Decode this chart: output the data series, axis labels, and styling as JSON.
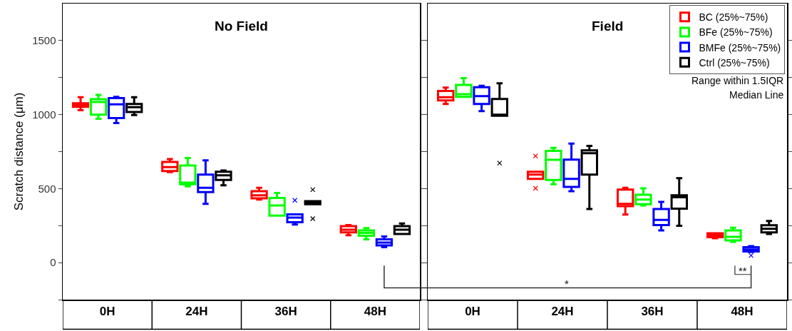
{
  "chart_data": [
    {
      "type": "box",
      "title": "No Field",
      "ylabel": "Scratch distance (μm)",
      "categories": [
        "0H",
        "24H",
        "36H",
        "48H"
      ],
      "ylim": [
        -250,
        1750
      ],
      "yticks": [
        {
          "value": -250,
          "label": null
        },
        0,
        {
          "value": 250,
          "label": null
        },
        500,
        {
          "value": 750,
          "label": null
        },
        1000,
        {
          "value": 1250,
          "label": null
        },
        1500
      ],
      "legend": false,
      "series": [
        {
          "color": "#ff0000",
          "boxes": [
            {
              "low": 1029,
              "q1": 1053,
              "median": 1065,
              "q3": 1077,
              "high": 1117
            },
            {
              "low": 611,
              "q1": 619,
              "median": 645,
              "q3": 680,
              "high": 699
            },
            {
              "low": 426,
              "q1": 434,
              "median": 455,
              "q3": 482,
              "high": 506
            },
            {
              "low": 185,
              "q1": 204,
              "median": 222,
              "q3": 246,
              "high": 254
            }
          ]
        },
        {
          "color": "#00ff00",
          "boxes": [
            {
              "low": 972,
              "q1": 1000,
              "median": 1085,
              "q3": 1104,
              "high": 1133
            },
            {
              "low": 515,
              "q1": 530,
              "median": 540,
              "q3": 656,
              "high": 707
            },
            {
              "low": 318,
              "q1": 318,
              "median": 386,
              "q3": 437,
              "high": 471
            },
            {
              "low": 157,
              "q1": 181,
              "median": 201,
              "q3": 217,
              "high": 233
            }
          ]
        },
        {
          "color": "#0000ff",
          "boxes": [
            {
              "low": 943,
              "q1": 976,
              "median": 1069,
              "q3": 1112,
              "high": 1120
            },
            {
              "low": 397,
              "q1": 477,
              "median": 506,
              "q3": 594,
              "high": 691
            },
            {
              "low": 257,
              "q1": 273,
              "median": 304,
              "q3": 326,
              "high": 326,
              "outliers": [
                421
              ]
            },
            {
              "low": 104,
              "q1": 116,
              "median": 136,
              "q3": 157,
              "high": 177
            }
          ]
        },
        {
          "color": "#000000",
          "boxes": [
            {
              "low": 997,
              "q1": 1018,
              "median": 1050,
              "q3": 1072,
              "high": 1117
            },
            {
              "low": 522,
              "q1": 559,
              "median": 590,
              "q3": 614,
              "high": 622
            },
            {
              "low": 394,
              "q1": 394,
              "median": 403,
              "q3": 415,
              "high": 415,
              "outliers": [
                493,
                297
              ]
            },
            {
              "low": 193,
              "q1": 193,
              "median": 222,
              "q3": 246,
              "high": 265
            }
          ]
        }
      ]
    },
    {
      "type": "box",
      "title": "Field",
      "categories": [
        "0H",
        "24H",
        "36H",
        "48H"
      ],
      "ylim": [
        -250,
        1750
      ],
      "yticks": [
        {
          "value": -250,
          "label": null
        },
        0,
        {
          "value": 250,
          "label": null
        },
        500,
        {
          "value": 750,
          "label": null
        },
        1000,
        {
          "value": 1250,
          "label": null
        },
        1500
      ],
      "legend": "top right",
      "tick_labels": "x",
      "annotations": [
        "Range within 1.5IQR",
        "Median Line",
        "*",
        "**"
      ],
      "series": [
        {
          "name": "BC (25%~75%)",
          "color": "#ff0000",
          "boxes": [
            {
              "low": 1072,
              "q1": 1096,
              "median": 1117,
              "q3": 1160,
              "high": 1182
            },
            {
              "low": 566,
              "q1": 566,
              "median": 595,
              "q3": 614,
              "high": 614,
              "outliers": [
                720,
                502
              ]
            },
            {
              "low": 325,
              "q1": 381,
              "median": 397,
              "q3": 493,
              "high": 506
            },
            {
              "low": 164,
              "q1": 172,
              "median": 185,
              "q3": 198,
              "high": 198
            }
          ]
        },
        {
          "name": "BFe (25%~75%)",
          "color": "#00ff00",
          "boxes": [
            {
              "low": 1120,
              "q1": 1120,
              "median": 1138,
              "q3": 1201,
              "high": 1246
            },
            {
              "low": 530,
              "q1": 559,
              "median": 694,
              "q3": 755,
              "high": 775
            },
            {
              "low": 386,
              "q1": 394,
              "median": 426,
              "q3": 458,
              "high": 502
            },
            {
              "low": 140,
              "q1": 150,
              "median": 174,
              "q3": 217,
              "high": 236
            }
          ]
        },
        {
          "name": "BMFe (25%~75%)",
          "color": "#0000ff",
          "boxes": [
            {
              "low": 1024,
              "q1": 1072,
              "median": 1125,
              "q3": 1185,
              "high": 1194
            },
            {
              "low": 482,
              "q1": 511,
              "median": 566,
              "q3": 696,
              "high": 804
            },
            {
              "low": 217,
              "q1": 254,
              "median": 289,
              "q3": 362,
              "high": 410
            },
            {
              "low": 72,
              "q1": 75,
              "median": 88,
              "q3": 104,
              "high": 112,
              "outliers": [
                48
              ]
            }
          ]
        },
        {
          "name": "Ctrl (25%~75%)",
          "color": "#000000",
          "boxes": [
            {
              "low": 992,
              "q1": 992,
              "median": 1000,
              "q3": 1106,
              "high": 1211,
              "outliers": [
                672
              ]
            },
            {
              "low": 362,
              "q1": 595,
              "median": 739,
              "q3": 759,
              "high": 788
            },
            {
              "low": 249,
              "q1": 365,
              "median": 442,
              "q3": 455,
              "high": 571
            },
            {
              "low": 193,
              "q1": 204,
              "median": 228,
              "q3": 252,
              "high": 281
            }
          ]
        }
      ]
    }
  ]
}
